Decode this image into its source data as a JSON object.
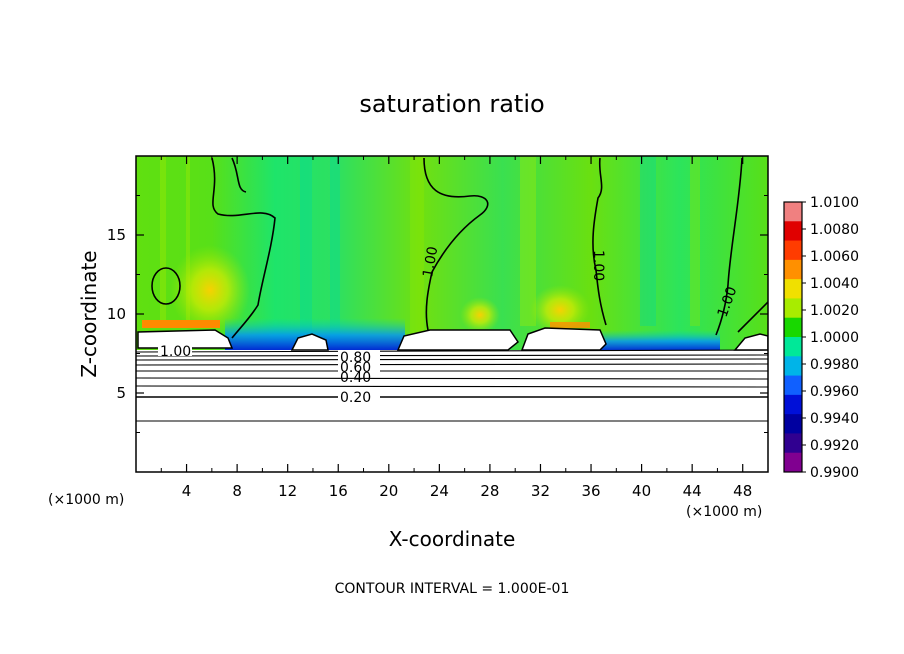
{
  "chart_data": {
    "type": "heatmap",
    "title": "saturation ratio",
    "xlabel": "X-coordinate",
    "ylabel": "Z-coordinate",
    "x_unit": "(×1000 m)",
    "y_unit": "(×1000 m)",
    "xlim": [
      0,
      50
    ],
    "ylim": [
      0,
      20
    ],
    "x_ticks": [
      "4",
      "8",
      "12",
      "16",
      "20",
      "24",
      "28",
      "32",
      "36",
      "40",
      "44",
      "48"
    ],
    "x_tick_values": [
      4,
      8,
      12,
      16,
      20,
      24,
      28,
      32,
      36,
      40,
      44,
      48
    ],
    "y_ticks": [
      "5",
      "10",
      "15"
    ],
    "y_tick_values": [
      5,
      10,
      15
    ],
    "footer": "CONTOUR INTERVAL = 1.000E-01",
    "colorbar": {
      "labels": [
        "1.0100",
        "1.0080",
        "1.0060",
        "1.0040",
        "1.0020",
        "1.0000",
        "0.9980",
        "0.9960",
        "0.9940",
        "0.9920",
        "0.9900"
      ],
      "colors": [
        "#f08080",
        "#e00000",
        "#ff3c00",
        "#ff9000",
        "#f0e000",
        "#a8ec00",
        "#18d800",
        "#00e898",
        "#00b4e8",
        "#1060ff",
        "#0010d8",
        "#0000a0",
        "#300090",
        "#800090"
      ]
    },
    "contour_levels": [
      {
        "label": "1.00",
        "z": 7.8
      },
      {
        "label": "0.80",
        "z": 7.2
      },
      {
        "label": "0.60",
        "z": 6.8
      },
      {
        "label": "0.40",
        "z": 6.2
      },
      {
        "label": "0.20",
        "z": 4.9
      }
    ],
    "plume_contour_labels": [
      "1.00",
      "1.00",
      "1.00"
    ],
    "plume_contour_label_positions": [
      [
        23.0,
        12.6
      ],
      [
        36.5,
        12.6
      ],
      [
        47.0,
        10.3
      ]
    ]
  }
}
